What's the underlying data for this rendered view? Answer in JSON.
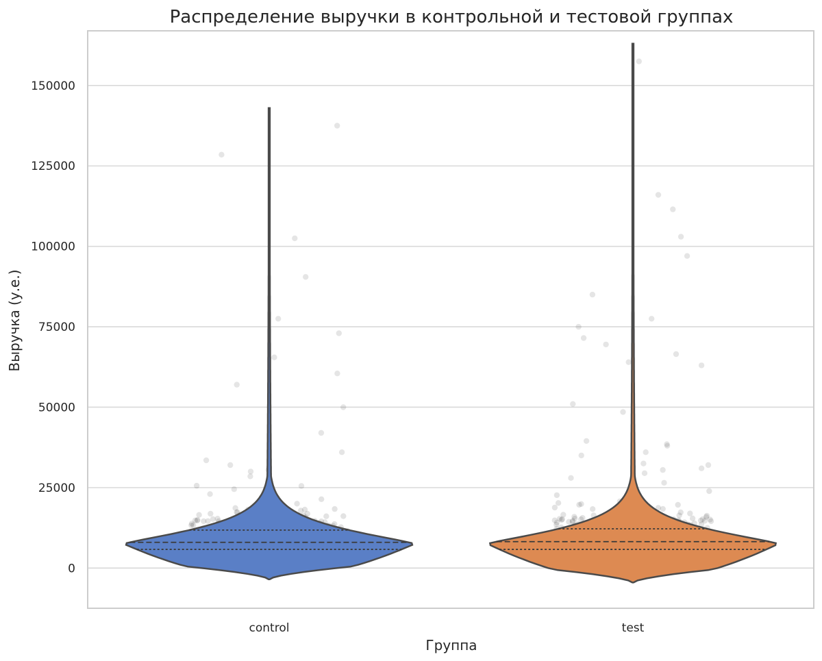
{
  "chart_data": {
    "type": "violin",
    "title": "Распределение выручки в контрольной и тестовой группах",
    "xlabel": "Группа",
    "ylabel": "Выручка (у.е.)",
    "ylim": [
      -12500,
      167000
    ],
    "yticks": [
      0,
      25000,
      50000,
      75000,
      100000,
      125000,
      150000
    ],
    "grid": true,
    "categories": [
      "control",
      "test"
    ],
    "series": [
      {
        "category": "control",
        "color": "#5a7fc6",
        "violin_extent": [
          -3500,
          143000
        ],
        "quartiles": {
          "q1": 5800,
          "median": 8000,
          "q3": 11800
        },
        "outlier_points": [
          137500,
          128500,
          102500,
          90500,
          77500,
          73000,
          65500,
          60500,
          57000,
          50000,
          42000,
          36000,
          33500,
          32000,
          30500,
          30000,
          28500,
          27500,
          25500,
          24500,
          23000
        ]
      },
      {
        "category": "test",
        "color": "#dd8a52",
        "violin_extent": [
          -4500,
          163000
        ],
        "quartiles": {
          "q1": 5800,
          "median": 8200,
          "q3": 12200
        },
        "outlier_points": [
          157500,
          116000,
          111500,
          103000,
          97000,
          85000,
          77500,
          75000,
          71500,
          69500,
          66500,
          64000,
          63000,
          51000,
          48500,
          39500,
          38500,
          38000,
          36000,
          35000,
          32500,
          32000,
          31000,
          30500,
          29500,
          28000,
          26500
        ]
      }
    ]
  }
}
